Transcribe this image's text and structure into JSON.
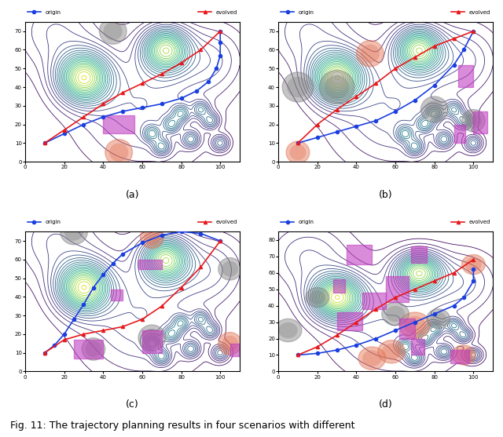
{
  "caption": "Fig. 11: The trajectory planning results in four scenarios with different",
  "terrain": [
    {
      "x": 30,
      "y": 45,
      "h": 1.0,
      "s": 9
    },
    {
      "x": 72,
      "y": 60,
      "h": 0.9,
      "s": 8
    },
    {
      "x": 60,
      "y": 30,
      "h": 0.25,
      "s": 22
    },
    {
      "x": 15,
      "y": 70,
      "h": 0.2,
      "s": 15
    },
    {
      "x": 95,
      "y": 55,
      "h": 0.2,
      "s": 12
    },
    {
      "x": 65,
      "y": 15,
      "h": 0.35,
      "s": 3
    },
    {
      "x": 75,
      "y": 20,
      "h": 0.35,
      "s": 3
    },
    {
      "x": 85,
      "y": 12,
      "h": 0.35,
      "s": 3
    },
    {
      "x": 95,
      "y": 22,
      "h": 0.35,
      "s": 3
    },
    {
      "x": 70,
      "y": 8,
      "h": 0.35,
      "s": 3
    },
    {
      "x": 90,
      "y": 28,
      "h": 0.35,
      "s": 3
    },
    {
      "x": 80,
      "y": 26,
      "h": 0.35,
      "s": 3
    },
    {
      "x": 100,
      "y": 10,
      "h": 0.35,
      "s": 3
    }
  ],
  "chart_data": [
    {
      "type": "line",
      "title": "(a)",
      "legend": "upper center",
      "xlim": [
        0,
        110
      ],
      "xticks": [
        0,
        20,
        40,
        60,
        80,
        100
      ],
      "ylim": [
        0,
        75
      ],
      "yticks": [
        0,
        10,
        20,
        30,
        40,
        50,
        60,
        70
      ],
      "series": [
        {
          "name": "origin",
          "color": "#1a3fe0",
          "marker": "circle",
          "line_style": "solid",
          "x": [
            10,
            20,
            30,
            40,
            50,
            60,
            70,
            80,
            88,
            94,
            98,
            100,
            100,
            100
          ],
          "values": [
            10,
            15,
            20,
            24,
            27,
            29,
            31,
            34,
            38,
            43,
            50,
            57,
            64,
            70
          ]
        },
        {
          "name": "evolved",
          "color": "#e8191c",
          "marker": "triangle",
          "line_style": "solid",
          "x": [
            10,
            20,
            30,
            40,
            50,
            60,
            70,
            80,
            90,
            100
          ],
          "values": [
            10,
            17,
            24,
            31,
            37,
            42,
            47,
            53,
            60,
            70
          ]
        }
      ],
      "obstacles": {
        "circles": [
          {
            "x": 45,
            "y": 70,
            "r": 7,
            "color": "#808080"
          },
          {
            "x": 48,
            "y": 5,
            "r": 7,
            "color": "#e07050"
          }
        ],
        "rects": [
          {
            "x": 40,
            "y": 15,
            "w": 16,
            "h": 10,
            "color": "#c040c0"
          }
        ]
      }
    },
    {
      "type": "line",
      "title": "(b)",
      "legend": "upper center",
      "xlim": [
        0,
        110
      ],
      "xticks": [
        0,
        20,
        40,
        60,
        80,
        100
      ],
      "ylim": [
        0,
        75
      ],
      "yticks": [
        0,
        10,
        20,
        30,
        40,
        50,
        60,
        70
      ],
      "series": [
        {
          "name": "origin",
          "color": "#1a3fe0",
          "marker": "circle",
          "line_style": "solid",
          "x": [
            10,
            20,
            30,
            40,
            50,
            60,
            70,
            80,
            90,
            95,
            100
          ],
          "values": [
            10,
            13,
            16,
            19,
            22,
            27,
            33,
            41,
            52,
            60,
            70
          ]
        },
        {
          "name": "evolved",
          "color": "#e8191c",
          "marker": "triangle",
          "line_style": "solid",
          "x": [
            10,
            20,
            30,
            40,
            50,
            60,
            70,
            80,
            90,
            100
          ],
          "values": [
            10,
            20,
            28,
            35,
            42,
            50,
            56,
            62,
            66,
            70
          ]
        }
      ],
      "obstacles": {
        "circles": [
          {
            "x": 10,
            "y": 5,
            "r": 6,
            "color": "#e07050"
          },
          {
            "x": 10,
            "y": 40,
            "r": 8,
            "color": "#808080"
          },
          {
            "x": 30,
            "y": 40,
            "r": 9,
            "color": "#808080"
          },
          {
            "x": 47,
            "y": 58,
            "r": 7,
            "color": "#e07050"
          },
          {
            "x": 80,
            "y": 28,
            "r": 7,
            "color": "#808080"
          },
          {
            "x": 100,
            "y": 22,
            "r": 6,
            "color": "#808080"
          }
        ],
        "rects": [
          {
            "x": 92,
            "y": 40,
            "w": 8,
            "h": 12,
            "color": "#c040c0"
          },
          {
            "x": 90,
            "y": 10,
            "w": 6,
            "h": 10,
            "color": "#c040c0"
          },
          {
            "x": 100,
            "y": 15,
            "w": 7,
            "h": 12,
            "color": "#c040c0"
          }
        ]
      }
    },
    {
      "type": "line",
      "title": "(c)",
      "legend": "upper center",
      "xlim": [
        0,
        110
      ],
      "xticks": [
        0,
        20,
        40,
        60,
        80,
        100
      ],
      "ylim": [
        0,
        75
      ],
      "yticks": [
        0,
        10,
        20,
        30,
        40,
        50,
        60,
        70
      ],
      "series": [
        {
          "name": "origin",
          "color": "#1a3fe0",
          "marker": "circle",
          "line_style": "solid",
          "x": [
            10,
            15,
            20,
            25,
            30,
            35,
            40,
            45,
            50,
            60,
            70,
            80,
            90,
            100
          ],
          "values": [
            10,
            14,
            20,
            28,
            36,
            45,
            52,
            58,
            63,
            69,
            73,
            75,
            74,
            70
          ]
        },
        {
          "name": "evolved",
          "color": "#e8191c",
          "marker": "triangle",
          "line_style": "solid",
          "x": [
            10,
            20,
            30,
            40,
            50,
            60,
            70,
            80,
            90,
            100
          ],
          "values": [
            10,
            17,
            20,
            22,
            24,
            28,
            35,
            45,
            56,
            70
          ]
        }
      ],
      "obstacles": {
        "circles": [
          {
            "x": 25,
            "y": 75,
            "r": 7,
            "color": "#808080"
          },
          {
            "x": 65,
            "y": 72,
            "r": 6,
            "color": "#e07050"
          },
          {
            "x": 105,
            "y": 55,
            "r": 6,
            "color": "#808080"
          },
          {
            "x": 65,
            "y": 18,
            "r": 7,
            "color": "#808080"
          },
          {
            "x": 35,
            "y": 12,
            "r": 6,
            "color": "#808080"
          },
          {
            "x": 105,
            "y": 15,
            "r": 6,
            "color": "#e07050"
          }
        ],
        "rects": [
          {
            "x": 58,
            "y": 55,
            "w": 12,
            "h": 5,
            "color": "#c040c0"
          },
          {
            "x": 44,
            "y": 38,
            "w": 6,
            "h": 6,
            "color": "#c040c0"
          },
          {
            "x": 60,
            "y": 10,
            "w": 10,
            "h": 12,
            "color": "#c040c0"
          },
          {
            "x": 25,
            "y": 7,
            "w": 15,
            "h": 10,
            "color": "#c040c0"
          },
          {
            "x": 105,
            "y": 8,
            "w": 5,
            "h": 7,
            "color": "#c040c0"
          }
        ]
      }
    },
    {
      "type": "line",
      "title": "(d)",
      "legend": "upper center",
      "xlim": [
        0,
        110
      ],
      "xticks": [
        0,
        20,
        40,
        60,
        80,
        100
      ],
      "ylim": [
        0,
        85
      ],
      "yticks": [
        0,
        10,
        20,
        30,
        40,
        50,
        60,
        70,
        80
      ],
      "series": [
        {
          "name": "origin",
          "color": "#1a3fe0",
          "marker": "circle",
          "line_style": "solid",
          "x": [
            10,
            20,
            30,
            40,
            50,
            60,
            70,
            80,
            90,
            95,
            100,
            100
          ],
          "values": [
            10,
            11,
            13,
            16,
            20,
            25,
            30,
            35,
            40,
            45,
            55,
            62
          ]
        },
        {
          "name": "evolved",
          "color": "#e8191c",
          "marker": "triangle",
          "line_style": "solid",
          "x": [
            10,
            20,
            30,
            40,
            50,
            60,
            70,
            80,
            90,
            100
          ],
          "values": [
            10,
            15,
            22,
            30,
            38,
            45,
            50,
            55,
            60,
            68
          ]
        }
      ],
      "obstacles": {
        "circles": [
          {
            "x": 48,
            "y": 8,
            "r": 7,
            "color": "#e07050"
          },
          {
            "x": 58,
            "y": 12,
            "r": 7,
            "color": "#e07050"
          },
          {
            "x": 70,
            "y": 28,
            "r": 8,
            "color": "#e07050"
          },
          {
            "x": 100,
            "y": 65,
            "r": 6,
            "color": "#e07050"
          },
          {
            "x": 60,
            "y": 35,
            "r": 7,
            "color": "#808080"
          },
          {
            "x": 82,
            "y": 32,
            "r": 6,
            "color": "#808080"
          },
          {
            "x": 5,
            "y": 25,
            "r": 7,
            "color": "#808080"
          },
          {
            "x": 20,
            "y": 45,
            "r": 6,
            "color": "#808080"
          },
          {
            "x": 95,
            "y": 10,
            "r": 6,
            "color": "#e07050"
          }
        ],
        "rects": [
          {
            "x": 35,
            "y": 65,
            "w": 13,
            "h": 12,
            "color": "#c040c0"
          },
          {
            "x": 28,
            "y": 48,
            "w": 6,
            "h": 8,
            "color": "#c040c0"
          },
          {
            "x": 43,
            "y": 38,
            "w": 12,
            "h": 10,
            "color": "#c040c0"
          },
          {
            "x": 55,
            "y": 42,
            "w": 12,
            "h": 16,
            "color": "#c040c0"
          },
          {
            "x": 68,
            "y": 66,
            "w": 8,
            "h": 10,
            "color": "#c040c0"
          },
          {
            "x": 30,
            "y": 25,
            "w": 13,
            "h": 11,
            "color": "#c040c0"
          },
          {
            "x": 62,
            "y": 20,
            "w": 8,
            "h": 12,
            "color": "#c040c0"
          },
          {
            "x": 68,
            "y": 10,
            "w": 7,
            "h": 10,
            "color": "#c040c0"
          },
          {
            "x": 88,
            "y": 5,
            "w": 10,
            "h": 8,
            "color": "#c040c0"
          }
        ]
      }
    }
  ]
}
